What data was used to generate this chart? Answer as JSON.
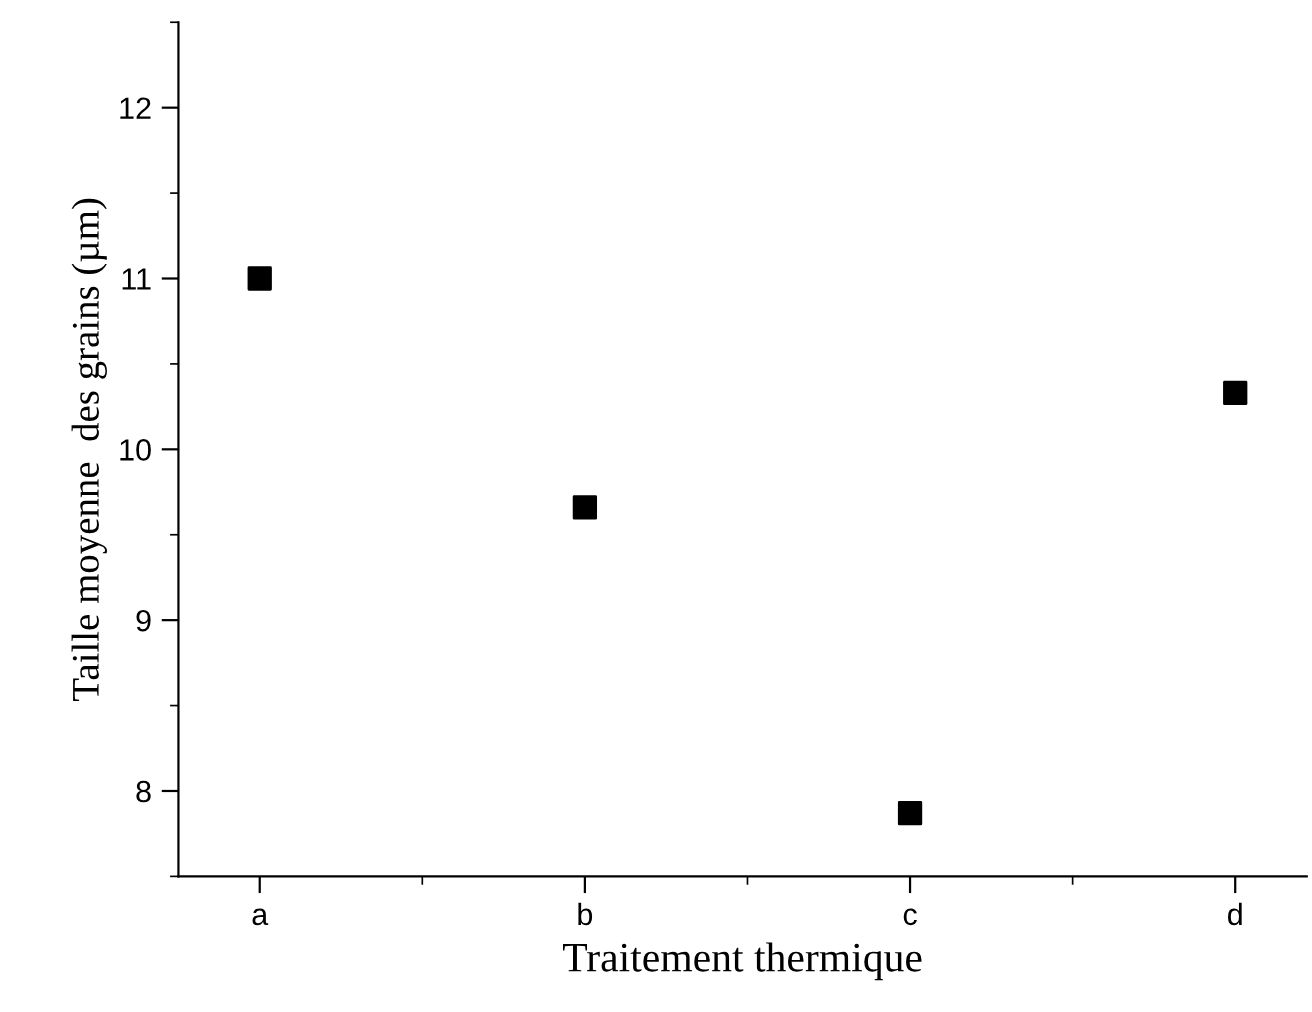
{
  "chart_data": {
    "type": "scatter",
    "xlabel": "Traitement thermique",
    "ylabel": "Taille moyenne  des grains (µm)",
    "categories": [
      "a",
      "b",
      "c",
      "d"
    ],
    "series": [
      {
        "color": "#000000",
        "values": [
          11.0,
          9.66,
          7.87,
          10.33
        ]
      }
    ],
    "marker": "square",
    "grid": false,
    "legend": false,
    "ylim": [
      7.5,
      12.5
    ],
    "yticks": [
      {
        "value": 7.5,
        "label": null
      },
      8,
      {
        "value": 8.5,
        "label": null
      },
      9,
      {
        "value": 9.5,
        "label": null
      },
      10,
      {
        "value": 10.5,
        "label": null
      },
      11,
      {
        "value": 11.5,
        "label": null
      },
      12,
      {
        "value": 12.5,
        "label": null
      }
    ]
  }
}
